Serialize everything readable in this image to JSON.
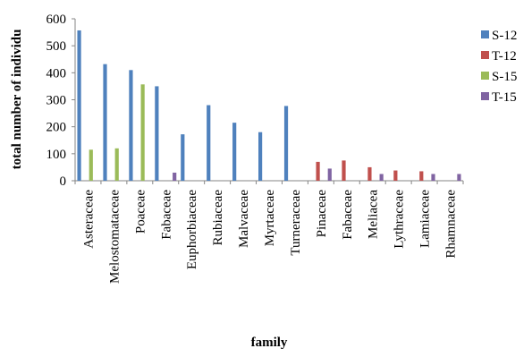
{
  "chart_data": {
    "type": "bar",
    "title": "",
    "xlabel": "family",
    "ylabel": "total number of individu",
    "ylim": [
      0,
      600
    ],
    "yticks": [
      0,
      100,
      200,
      300,
      400,
      500,
      600
    ],
    "legend_position": "right",
    "categories": [
      "Asteraceae",
      "Melostomataceae",
      "Poaceae",
      "Fabaceae",
      "Euphorbiaceae",
      "Rubiaceae",
      "Malvaceae",
      "Myrtaceae",
      "Turneraceae",
      "Pinaceae",
      "Fabaceae",
      "Meliacea",
      "Lythraceae",
      "Lamiaceae",
      "Rhamnaceae"
    ],
    "series": [
      {
        "name": "S-12",
        "color": "#4f81bd",
        "values": [
          557,
          432,
          410,
          350,
          172,
          280,
          215,
          180,
          277,
          0,
          0,
          0,
          0,
          0,
          0
        ]
      },
      {
        "name": "T-12",
        "color": "#c0504d",
        "values": [
          0,
          0,
          0,
          0,
          0,
          0,
          0,
          0,
          0,
          70,
          75,
          50,
          38,
          35,
          0
        ]
      },
      {
        "name": "S-15",
        "color": "#9bbb59",
        "values": [
          115,
          120,
          357,
          0,
          0,
          0,
          0,
          0,
          0,
          0,
          0,
          0,
          0,
          0,
          0
        ]
      },
      {
        "name": "T-15",
        "color": "#8064a2",
        "values": [
          0,
          0,
          0,
          30,
          0,
          0,
          0,
          0,
          0,
          45,
          0,
          25,
          0,
          25,
          25
        ]
      }
    ]
  }
}
